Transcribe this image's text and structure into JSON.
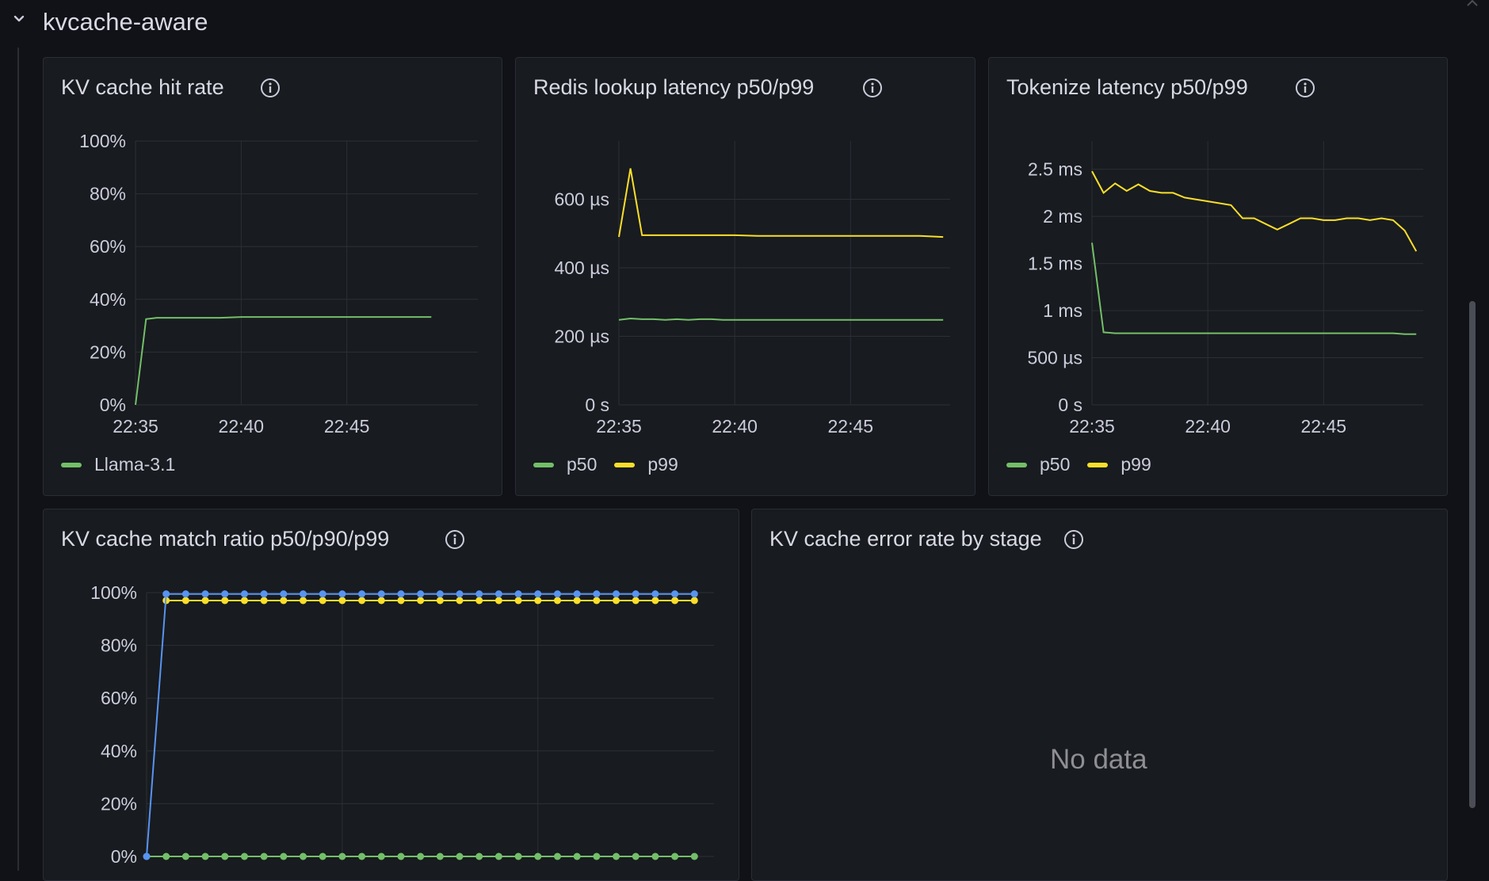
{
  "row": {
    "title": "kvcache-aware",
    "collapse_icon": "chevron-down-icon"
  },
  "colors": {
    "green": "#73bf69",
    "yellow": "#fade2a",
    "blue": "#5794f2",
    "grid": "#2c2f36",
    "axis_text": "#ccccdc"
  },
  "panels": {
    "hit_rate": {
      "title": "KV cache hit rate",
      "info_icon": "info-icon",
      "legend": [
        {
          "label": "Llama-3.1",
          "color": "#73bf69"
        }
      ],
      "chart_data": {
        "type": "line",
        "title": "KV cache hit rate",
        "x_ticks": [
          "22:35",
          "22:40",
          "22:45"
        ],
        "y_ticks": [
          "0%",
          "20%",
          "40%",
          "60%",
          "80%",
          "100%"
        ],
        "x_range": [
          0,
          16.2
        ],
        "ylim": [
          0,
          100
        ],
        "y_unit": "%",
        "series": [
          {
            "name": "Llama-3.1",
            "color": "#73bf69",
            "x": [
              0,
              0.5,
              1,
              2,
              3,
              4,
              5,
              6,
              7,
              8,
              9,
              10,
              11,
              12,
              13,
              14
            ],
            "values": [
              0,
              32.5,
              33,
              33,
              33,
              33,
              33.3,
              33.3,
              33.3,
              33.3,
              33.3,
              33.3,
              33.3,
              33.3,
              33.3,
              33.3
            ]
          }
        ]
      }
    },
    "redis": {
      "title": "Redis lookup latency p50/p99",
      "info_icon": "info-icon",
      "legend": [
        {
          "label": "p50",
          "color": "#73bf69"
        },
        {
          "label": "p99",
          "color": "#fade2a"
        }
      ],
      "chart_data": {
        "type": "line",
        "title": "Redis lookup latency p50/p99",
        "x_ticks": [
          "22:35",
          "22:40",
          "22:45"
        ],
        "y_ticks": [
          "0 s",
          "200 µs",
          "400 µs",
          "600 µs"
        ],
        "x_range": [
          0,
          14.3
        ],
        "ylim": [
          0,
          770
        ],
        "y_unit": "µs",
        "series": [
          {
            "name": "p50",
            "color": "#73bf69",
            "x": [
              0,
              0.5,
              1,
              1.5,
              2,
              2.5,
              3,
              3.5,
              4,
              4.5,
              5,
              6,
              7,
              8,
              9,
              10,
              11,
              12,
              13,
              14
            ],
            "values": [
              248,
              252,
              250,
              250,
              248,
              250,
              248,
              250,
              250,
              248,
              248,
              248,
              248,
              248,
              248,
              248,
              248,
              248,
              248,
              248
            ]
          },
          {
            "name": "p99",
            "color": "#fade2a",
            "x": [
              0,
              0.5,
              1,
              2,
              3,
              4,
              5,
              6,
              7,
              8,
              9,
              10,
              11,
              12,
              13,
              14
            ],
            "values": [
              490,
              690,
              495,
              495,
              495,
              495,
              495,
              493,
              493,
              493,
              493,
              493,
              493,
              493,
              493,
              490
            ]
          }
        ]
      }
    },
    "tokenize": {
      "title": "Tokenize latency p50/p99",
      "info_icon": "info-icon",
      "legend": [
        {
          "label": "p50",
          "color": "#73bf69"
        },
        {
          "label": "p99",
          "color": "#fade2a"
        }
      ],
      "chart_data": {
        "type": "line",
        "title": "Tokenize latency p50/p99",
        "x_ticks": [
          "22:35",
          "22:40",
          "22:45"
        ],
        "y_ticks": [
          "0 s",
          "500 µs",
          "1 ms",
          "1.5 ms",
          "2 ms",
          "2.5 ms"
        ],
        "x_range": [
          0,
          14.3
        ],
        "ylim": [
          0,
          2.8
        ],
        "y_unit": "ms",
        "series": [
          {
            "name": "p50",
            "color": "#73bf69",
            "x": [
              0,
              0.5,
              1,
              2,
              3,
              4,
              5,
              6,
              7,
              8,
              9,
              10,
              11,
              12,
              13,
              13.5,
              14
            ],
            "values": [
              1.72,
              0.77,
              0.76,
              0.76,
              0.76,
              0.76,
              0.76,
              0.76,
              0.76,
              0.76,
              0.76,
              0.76,
              0.76,
              0.76,
              0.76,
              0.75,
              0.75
            ]
          },
          {
            "name": "p99",
            "color": "#fade2a",
            "x": [
              0,
              0.5,
              1,
              1.5,
              2,
              2.5,
              3,
              3.5,
              4,
              4.5,
              5,
              5.5,
              6,
              6.5,
              7,
              7.5,
              8,
              8.5,
              9,
              9.5,
              10,
              10.5,
              11,
              11.5,
              12,
              12.5,
              13,
              13.5,
              14
            ],
            "values": [
              2.48,
              2.25,
              2.35,
              2.27,
              2.34,
              2.27,
              2.25,
              2.25,
              2.2,
              2.18,
              2.16,
              2.14,
              2.12,
              1.98,
              1.98,
              1.92,
              1.86,
              1.92,
              1.98,
              1.98,
              1.96,
              1.96,
              1.98,
              1.98,
              1.96,
              1.98,
              1.96,
              1.85,
              1.63
            ]
          }
        ]
      }
    },
    "match_ratio": {
      "title": "KV cache match ratio p50/p90/p99",
      "info_icon": "info-icon",
      "chart_data": {
        "type": "line",
        "title": "KV cache match ratio p50/p90/p99",
        "y_ticks": [
          "0%",
          "20%",
          "40%",
          "60%",
          "80%",
          "100%"
        ],
        "ylim": [
          0,
          100
        ],
        "x_range": [
          0,
          29
        ],
        "y_unit": "%",
        "series": [
          {
            "name": "p50",
            "color": "#73bf69",
            "x": [
              0,
              1,
              2,
              3,
              4,
              5,
              6,
              7,
              8,
              9,
              10,
              11,
              12,
              13,
              14,
              15,
              16,
              17,
              18,
              19,
              20,
              21,
              22,
              23,
              24,
              25,
              26,
              27,
              28
            ],
            "values": [
              0,
              0,
              0,
              0,
              0,
              0,
              0,
              0,
              0,
              0,
              0,
              0,
              0,
              0,
              0,
              0,
              0,
              0,
              0,
              0,
              0,
              0,
              0,
              0,
              0,
              0,
              0,
              0,
              0
            ]
          },
          {
            "name": "p90",
            "color": "#fade2a",
            "x": [
              1,
              2,
              3,
              4,
              5,
              6,
              7,
              8,
              9,
              10,
              11,
              12,
              13,
              14,
              15,
              16,
              17,
              18,
              19,
              20,
              21,
              22,
              23,
              24,
              25,
              26,
              27,
              28
            ],
            "values": [
              97,
              97,
              97,
              97,
              97,
              97,
              97,
              97,
              97,
              97,
              97,
              97,
              97,
              97,
              97,
              97,
              97,
              97,
              97,
              97,
              97,
              97,
              97,
              97,
              97,
              97,
              97,
              97
            ]
          },
          {
            "name": "p99",
            "color": "#5794f2",
            "x": [
              0,
              1,
              2,
              3,
              4,
              5,
              6,
              7,
              8,
              9,
              10,
              11,
              12,
              13,
              14,
              15,
              16,
              17,
              18,
              19,
              20,
              21,
              22,
              23,
              24,
              25,
              26,
              27,
              28
            ],
            "values": [
              0,
              99.5,
              99.5,
              99.5,
              99.5,
              99.5,
              99.5,
              99.5,
              99.5,
              99.5,
              99.5,
              99.5,
              99.5,
              99.5,
              99.5,
              99.5,
              99.5,
              99.5,
              99.5,
              99.5,
              99.5,
              99.5,
              99.5,
              99.5,
              99.5,
              99.5,
              99.5,
              99.5,
              99.5
            ]
          }
        ]
      }
    },
    "error_rate": {
      "title": "KV cache error rate by stage",
      "info_icon": "info-icon",
      "no_data": "No data"
    }
  }
}
